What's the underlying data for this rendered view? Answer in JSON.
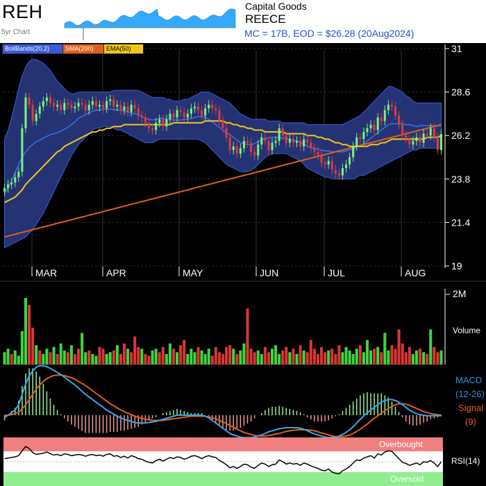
{
  "header": {
    "ticker": "REH",
    "sparkline_label": "5yr Chart",
    "sector": "Capital Goods",
    "company": "REECE",
    "summary": "MC = 17B, EOD = $26.28 (20Aug2024)"
  },
  "legend": [
    {
      "label": "BollBands(20,2)",
      "color": "#3b5bdb"
    },
    {
      "label": "SMA(200)",
      "color": "#e0601a"
    },
    {
      "label": "EMA(50)",
      "color": "#f2c71a"
    }
  ],
  "panels": {
    "volume_label": "Volume",
    "volume_max_label": "2M",
    "macd_label": "MACD",
    "macd_params": "(12-26)",
    "signal_label": "Signal",
    "signal_params": "(9)",
    "rsi_label": "RSI(14)",
    "overbought_label": "Overbought",
    "oversold_label": "Oversold"
  },
  "colors": {
    "background": "#000000",
    "band_fill": "#27367a",
    "up_candle": "#7cf27c",
    "down_candle": "#e03b3b",
    "macd_line": "#3aa6f0",
    "signal_line": "#e0601a",
    "overbought_bg": "#f08080",
    "oversold_bg": "#90ee90"
  },
  "chart_data": {
    "type": "line",
    "price_axis": {
      "ticks": [
        19,
        21.4,
        23.8,
        26.2,
        28.6,
        31
      ],
      "ylim": [
        19,
        31
      ]
    },
    "months": [
      "MAR",
      "APR",
      "MAY",
      "JUN",
      "JUL",
      "AUG"
    ],
    "close": [
      23.3,
      23.5,
      23.6,
      23.9,
      24.2,
      26.6,
      28.3,
      27.9,
      27.0,
      27.4,
      27.8,
      28.1,
      28.3,
      28.0,
      27.8,
      27.9,
      27.6,
      28.0,
      27.9,
      27.7,
      27.8,
      28.0,
      27.9,
      27.6,
      27.9,
      28.1,
      27.8,
      27.9,
      27.7,
      28.1,
      28.2,
      27.8,
      27.9,
      27.6,
      27.8,
      27.5,
      27.9,
      27.7,
      27.3,
      27.2,
      26.9,
      26.6,
      26.5,
      26.9,
      27.1,
      26.7,
      27.1,
      27.4,
      27.2,
      27.6,
      27.5,
      27.2,
      27.4,
      27.7,
      27.8,
      27.6,
      27.3,
      27.7,
      27.9,
      27.7,
      27.6,
      27.0,
      26.6,
      26.1,
      25.4,
      25.6,
      25.2,
      25.5,
      25.9,
      25.8,
      25.3,
      25.1,
      25.7,
      26.1,
      25.9,
      25.4,
      25.8,
      25.9,
      26.6,
      26.2,
      25.8,
      26.0,
      25.8,
      25.9,
      25.6,
      26.0,
      25.8,
      25.5,
      25.3,
      25.1,
      24.7,
      24.6,
      24.8,
      24.3,
      24.1,
      24.0,
      24.4,
      24.6,
      25.0,
      25.6,
      26.1,
      26.0,
      26.4,
      26.6,
      26.8,
      26.5,
      27.2,
      27.0,
      27.6,
      27.9,
      27.8,
      27.3,
      26.8,
      26.2,
      26.0,
      25.7,
      25.9,
      26.1,
      25.8,
      26.3,
      26.2,
      26.6,
      26.1,
      25.4,
      26.28
    ],
    "ema50": [
      22.5,
      22.6,
      22.7,
      22.8,
      23.0,
      23.2,
      23.5,
      23.7,
      23.9,
      24.1,
      24.3,
      24.5,
      24.7,
      24.9,
      25.1,
      25.3,
      25.4,
      25.6,
      25.7,
      25.8,
      25.9,
      26.0,
      26.1,
      26.2,
      26.3,
      26.4,
      26.4,
      26.5,
      26.5,
      26.6,
      26.6,
      26.7,
      26.7,
      26.7,
      26.8,
      26.8,
      26.8,
      26.8,
      26.8,
      26.8,
      26.8,
      26.8,
      26.8,
      26.8,
      26.8,
      26.8,
      26.8,
      26.8,
      26.9,
      26.9,
      26.9,
      26.9,
      26.9,
      26.9,
      26.9,
      26.9,
      26.9,
      27.0,
      27.0,
      27.0,
      27.0,
      27.0,
      27.0,
      26.9,
      26.9,
      26.8,
      26.8,
      26.7,
      26.7,
      26.6,
      26.6,
      26.5,
      26.5,
      26.5,
      26.4,
      26.4,
      26.4,
      26.4,
      26.4,
      26.4,
      26.3,
      26.3,
      26.3,
      26.3,
      26.3,
      26.3,
      26.2,
      26.2,
      26.2,
      26.1,
      26.1,
      26.0,
      26.0,
      25.9,
      25.8,
      25.8,
      25.7,
      25.7,
      25.6,
      25.6,
      25.6,
      25.6,
      25.6,
      25.6,
      25.7,
      25.7,
      25.7,
      25.8,
      25.8,
      25.9,
      26.0,
      26.0,
      26.0,
      26.0,
      26.0,
      26.0,
      26.0,
      26.0,
      26.0,
      26.0,
      26.1,
      26.1,
      26.1,
      26.1,
      26.2
    ],
    "sma200": [
      20.6,
      20.65,
      20.7,
      20.75,
      20.8,
      20.85,
      20.9,
      20.95,
      21.0,
      21.05,
      21.1,
      21.15,
      21.2,
      21.25,
      21.3,
      21.35,
      21.4,
      21.45,
      21.5,
      21.55,
      21.6,
      21.65,
      21.7,
      21.75,
      21.8,
      21.85,
      21.9,
      21.95,
      22.0,
      22.05,
      22.1,
      22.15,
      22.2,
      22.25,
      22.3,
      22.35,
      22.4,
      22.45,
      22.5,
      22.55,
      22.6,
      22.65,
      22.7,
      22.75,
      22.8,
      22.85,
      22.9,
      22.95,
      23.0,
      23.05,
      23.1,
      23.15,
      23.2,
      23.25,
      23.3,
      23.35,
      23.4,
      23.45,
      23.5,
      23.55,
      23.6,
      23.65,
      23.7,
      23.75,
      23.8,
      23.85,
      23.9,
      23.95,
      24.0,
      24.05,
      24.1,
      24.15,
      24.2,
      24.25,
      24.3,
      24.35,
      24.4,
      24.45,
      24.5,
      24.55,
      24.6,
      24.65,
      24.7,
      24.75,
      24.8,
      24.85,
      24.9,
      24.95,
      25.0,
      25.05,
      25.1,
      25.15,
      25.2,
      25.25,
      25.3,
      25.35,
      25.4,
      25.45,
      25.5,
      25.55,
      25.6,
      25.65,
      25.7,
      25.75,
      25.8,
      25.85,
      25.9,
      25.95,
      26.0,
      26.05,
      26.1,
      26.15,
      26.2,
      26.25,
      26.3,
      26.35,
      26.4,
      26.45,
      26.5,
      26.55,
      26.6,
      26.65,
      26.7,
      26.75,
      26.8
    ],
    "boll_upper": [
      26.0,
      26.5,
      27.2,
      28.0,
      28.8,
      29.5,
      30.0,
      30.3,
      30.4,
      30.4,
      30.3,
      30.2,
      30.0,
      29.8,
      29.5,
      29.2,
      29.0,
      28.8,
      28.6,
      28.5,
      28.5,
      28.6,
      28.6,
      28.6,
      28.6,
      28.6,
      28.6,
      28.6,
      28.6,
      28.6,
      28.6,
      28.7,
      28.7,
      28.7,
      28.7,
      28.7,
      28.7,
      28.7,
      28.7,
      28.6,
      28.5,
      28.4,
      28.3,
      28.3,
      28.3,
      28.3,
      28.2,
      28.2,
      28.1,
      28.1,
      28.1,
      28.2,
      28.2,
      28.3,
      28.4,
      28.5,
      28.6,
      28.6,
      28.6,
      28.5,
      28.4,
      28.3,
      28.2,
      28.1,
      28.0,
      27.8,
      27.6,
      27.4,
      27.3,
      27.2,
      27.1,
      27.1,
      27.1,
      27.1,
      27.1,
      27.0,
      27.0,
      27.0,
      27.0,
      26.9,
      26.9,
      26.9,
      26.9,
      26.9,
      26.9,
      26.9,
      26.8,
      26.8,
      26.8,
      26.8,
      26.8,
      26.8,
      26.8,
      26.8,
      26.8,
      26.8,
      26.8,
      26.9,
      27.0,
      27.1,
      27.2,
      27.3,
      27.5,
      27.7,
      27.9,
      28.1,
      28.3,
      28.5,
      28.7,
      28.9,
      28.9,
      28.8,
      28.7,
      28.6,
      28.4,
      28.3,
      28.1,
      28.0,
      28.0,
      28.0,
      28.0,
      28.0,
      28.0,
      28.0,
      28.0
    ],
    "boll_lower": [
      20.0,
      20.1,
      20.2,
      20.3,
      20.4,
      20.5,
      20.6,
      20.8,
      21.0,
      21.3,
      21.6,
      21.9,
      22.3,
      22.7,
      23.1,
      23.5,
      23.9,
      24.3,
      24.7,
      25.1,
      25.4,
      25.7,
      25.9,
      26.1,
      26.3,
      26.5,
      26.6,
      26.6,
      26.7,
      26.7,
      26.7,
      26.6,
      26.5,
      26.5,
      26.4,
      26.3,
      26.2,
      26.1,
      26.0,
      25.9,
      25.8,
      25.8,
      25.8,
      25.9,
      26.0,
      26.0,
      26.0,
      26.0,
      26.0,
      26.0,
      26.0,
      26.0,
      26.0,
      26.0,
      26.0,
      26.0,
      25.9,
      25.8,
      25.6,
      25.4,
      25.2,
      25.0,
      24.8,
      24.6,
      24.5,
      24.4,
      24.3,
      24.2,
      24.2,
      24.2,
      24.3,
      24.4,
      24.6,
      24.8,
      25.0,
      25.1,
      25.2,
      25.2,
      25.2,
      25.2,
      25.2,
      25.1,
      25.0,
      24.9,
      24.8,
      24.6,
      24.4,
      24.3,
      24.2,
      24.1,
      24.0,
      23.9,
      23.9,
      23.8,
      23.8,
      23.8,
      23.8,
      23.8,
      23.8,
      23.8,
      23.9,
      24.0,
      24.0,
      24.1,
      24.2,
      24.3,
      24.4,
      24.5,
      24.6,
      24.7,
      24.8,
      24.9,
      25.0,
      25.1,
      25.2,
      25.3,
      25.4,
      25.4,
      25.5,
      25.5,
      25.5,
      25.5,
      25.5,
      25.5,
      25.5
    ],
    "volume": [
      0.35,
      0.45,
      0.3,
      0.4,
      0.25,
      0.95,
      1.9,
      1.7,
      1.05,
      0.55,
      0.4,
      0.3,
      0.45,
      0.35,
      0.5,
      0.3,
      0.6,
      0.4,
      0.35,
      0.55,
      0.3,
      0.45,
      0.9,
      0.35,
      0.4,
      0.3,
      0.25,
      0.5,
      0.45,
      0.3,
      0.35,
      0.4,
      0.55,
      0.3,
      0.6,
      0.45,
      0.35,
      0.8,
      0.5,
      0.45,
      0.3,
      0.25,
      0.4,
      0.45,
      0.35,
      0.5,
      0.3,
      0.6,
      0.45,
      0.35,
      0.55,
      0.7,
      0.3,
      0.45,
      0.35,
      0.5,
      0.4,
      0.3,
      0.45,
      0.25,
      0.5,
      0.35,
      0.3,
      0.5,
      0.55,
      0.45,
      0.3,
      0.4,
      0.6,
      1.6,
      0.45,
      0.35,
      0.4,
      0.3,
      0.5,
      0.35,
      0.45,
      0.55,
      0.3,
      0.4,
      0.5,
      0.35,
      0.45,
      0.3,
      0.55,
      0.4,
      0.35,
      0.7,
      0.45,
      0.3,
      0.5,
      0.35,
      0.4,
      0.45,
      0.3,
      0.55,
      0.35,
      0.5,
      0.4,
      0.3,
      0.45,
      0.55,
      0.35,
      0.7,
      0.4,
      0.45,
      0.5,
      0.35,
      0.9,
      0.4,
      0.55,
      0.45,
      1.0,
      0.6,
      0.35,
      0.5,
      0.3,
      0.4,
      0.45,
      0.35,
      0.3,
      1.0,
      0.5,
      0.35,
      0.4
    ],
    "volume_up": [
      1,
      1,
      0,
      1,
      1,
      1,
      1,
      0,
      0,
      1,
      0,
      1,
      1,
      0,
      1,
      0,
      1,
      1,
      0,
      1,
      0,
      0,
      1,
      1,
      0,
      1,
      1,
      0,
      0,
      1,
      1,
      0,
      1,
      0,
      0,
      1,
      0,
      0,
      0,
      1,
      0,
      0,
      1,
      1,
      0,
      0,
      1,
      1,
      0,
      1,
      0,
      0,
      1,
      1,
      1,
      0,
      1,
      1,
      1,
      0,
      0,
      0,
      0,
      0,
      0,
      1,
      0,
      1,
      1,
      0,
      0,
      0,
      1,
      1,
      0,
      0,
      1,
      1,
      1,
      0,
      0,
      1,
      0,
      1,
      0,
      1,
      0,
      0,
      0,
      0,
      0,
      0,
      1,
      0,
      0,
      0,
      1,
      1,
      1,
      1,
      1,
      0,
      1,
      1,
      1,
      0,
      1,
      0,
      1,
      1,
      0,
      0,
      0,
      0,
      0,
      0,
      1,
      1,
      0,
      1,
      0,
      1,
      0,
      0,
      1
    ],
    "macd": [
      -0.05,
      0.0,
      0.05,
      0.1,
      0.2,
      0.4,
      0.6,
      0.75,
      0.85,
      0.92,
      0.95,
      0.95,
      0.93,
      0.9,
      0.86,
      0.82,
      0.78,
      0.73,
      0.68,
      0.63,
      0.58,
      0.52,
      0.46,
      0.4,
      0.35,
      0.3,
      0.25,
      0.2,
      0.15,
      0.1,
      0.06,
      0.02,
      -0.02,
      -0.05,
      -0.08,
      -0.1,
      -0.12,
      -0.14,
      -0.15,
      -0.15,
      -0.15,
      -0.14,
      -0.13,
      -0.12,
      -0.1,
      -0.08,
      -0.06,
      -0.04,
      -0.02,
      0.0,
      0.0,
      0.0,
      0.0,
      0.0,
      0.0,
      0.0,
      0.0,
      -0.02,
      -0.05,
      -0.1,
      -0.15,
      -0.2,
      -0.25,
      -0.3,
      -0.35,
      -0.38,
      -0.4,
      -0.42,
      -0.43,
      -0.43,
      -0.43,
      -0.42,
      -0.4,
      -0.38,
      -0.35,
      -0.32,
      -0.3,
      -0.28,
      -0.26,
      -0.25,
      -0.24,
      -0.24,
      -0.24,
      -0.24,
      -0.25,
      -0.27,
      -0.3,
      -0.33,
      -0.36,
      -0.38,
      -0.4,
      -0.42,
      -0.43,
      -0.43,
      -0.42,
      -0.4,
      -0.37,
      -0.33,
      -0.28,
      -0.22,
      -0.15,
      -0.08,
      -0.01,
      0.05,
      0.1,
      0.15,
      0.2,
      0.25,
      0.28,
      0.3,
      0.3,
      0.28,
      0.25,
      0.2,
      0.15,
      0.1,
      0.06,
      0.03,
      0.01,
      0.0,
      -0.01,
      -0.01,
      -0.01,
      -0.01,
      -0.01
    ],
    "signal": [
      0.0,
      0.0,
      0.01,
      0.03,
      0.06,
      0.12,
      0.2,
      0.3,
      0.4,
      0.5,
      0.58,
      0.65,
      0.7,
      0.74,
      0.76,
      0.77,
      0.77,
      0.76,
      0.74,
      0.72,
      0.69,
      0.65,
      0.61,
      0.57,
      0.52,
      0.47,
      0.42,
      0.37,
      0.32,
      0.27,
      0.22,
      0.18,
      0.14,
      0.1,
      0.07,
      0.04,
      0.01,
      -0.02,
      -0.04,
      -0.06,
      -0.08,
      -0.09,
      -0.1,
      -0.1,
      -0.1,
      -0.1,
      -0.09,
      -0.08,
      -0.07,
      -0.06,
      -0.05,
      -0.04,
      -0.03,
      -0.02,
      -0.02,
      -0.02,
      -0.02,
      -0.02,
      -0.03,
      -0.05,
      -0.07,
      -0.1,
      -0.13,
      -0.16,
      -0.2,
      -0.23,
      -0.27,
      -0.3,
      -0.33,
      -0.35,
      -0.37,
      -0.39,
      -0.4,
      -0.4,
      -0.4,
      -0.39,
      -0.38,
      -0.36,
      -0.35,
      -0.33,
      -0.31,
      -0.3,
      -0.29,
      -0.28,
      -0.28,
      -0.28,
      -0.28,
      -0.29,
      -0.3,
      -0.32,
      -0.34,
      -0.36,
      -0.38,
      -0.4,
      -0.41,
      -0.41,
      -0.41,
      -0.4,
      -0.38,
      -0.35,
      -0.31,
      -0.27,
      -0.22,
      -0.17,
      -0.11,
      -0.06,
      -0.01,
      0.04,
      0.09,
      0.13,
      0.17,
      0.2,
      0.22,
      0.22,
      0.21,
      0.19,
      0.16,
      0.13,
      0.1,
      0.07,
      0.05,
      0.03,
      0.02,
      0.01,
      0.0
    ],
    "rsi": [
      55,
      56,
      57,
      58,
      60,
      68,
      75,
      72,
      65,
      62,
      63,
      64,
      66,
      63,
      61,
      62,
      60,
      63,
      62,
      60,
      61,
      62,
      61,
      59,
      61,
      62,
      60,
      61,
      59,
      62,
      63,
      59,
      60,
      57,
      59,
      56,
      60,
      58,
      55,
      54,
      51,
      49,
      48,
      52,
      54,
      51,
      54,
      57,
      55,
      58,
      57,
      54,
      56,
      59,
      60,
      58,
      55,
      58,
      60,
      58,
      57,
      52,
      49,
      45,
      40,
      42,
      39,
      42,
      46,
      45,
      41,
      39,
      44,
      48,
      46,
      42,
      45,
      46,
      53,
      50,
      46,
      48,
      46,
      47,
      44,
      48,
      46,
      43,
      41,
      39,
      36,
      35,
      38,
      33,
      31,
      30,
      35,
      38,
      42,
      48,
      53,
      52,
      56,
      58,
      60,
      56,
      63,
      61,
      66,
      68,
      67,
      61,
      55,
      49,
      47,
      44,
      46,
      48,
      45,
      50,
      49,
      52,
      48,
      42,
      50
    ]
  }
}
